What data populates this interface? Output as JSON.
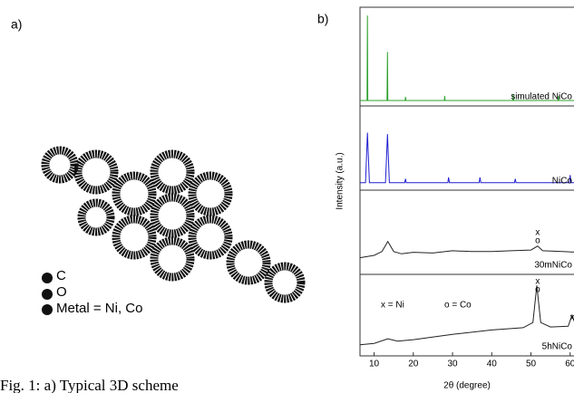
{
  "figure": {
    "label_a": "a)",
    "label_b": "b)",
    "legend": [
      "C",
      "O",
      "Metal = Ni, Co"
    ],
    "caption": "Fig. 1: a) Typical 3D scheme"
  },
  "chart_data": {
    "type": "line",
    "xlabel": "2θ (degree)",
    "ylabel": "Intensity (a.u.)",
    "xlim": [
      6.4,
      62.6
    ],
    "xticks": [
      10,
      20,
      30,
      40,
      50,
      60
    ],
    "ylim": [
      0,
      1
    ],
    "annotations": [
      "x",
      "o",
      "x = Ni",
      "o = Co",
      "x",
      "o",
      "x"
    ],
    "series": [
      {
        "name": "simulated NiCo",
        "color": "#2ca02c",
        "x": [
          6.4,
          8.2,
          8.3,
          8.4,
          13.3,
          13.4,
          13.5,
          17.9,
          18,
          18.1,
          27.9,
          28,
          28.1,
          45.4,
          45.5,
          45.6,
          56.9,
          57,
          57.1,
          62.6
        ],
        "values": [
          0.02,
          0.02,
          0.95,
          0.02,
          0.02,
          0.55,
          0.02,
          0.02,
          0.06,
          0.02,
          0.02,
          0.07,
          0.02,
          0.02,
          0.09,
          0.02,
          0.02,
          0.07,
          0.02,
          0.02
        ]
      },
      {
        "name": "NiCo",
        "color": "#1f1fd0",
        "x": [
          6.4,
          7.8,
          8.3,
          8.8,
          12.9,
          13.4,
          13.9,
          17.8,
          18,
          18.2,
          28.8,
          29,
          29.2,
          36.8,
          37,
          37.2,
          45.8,
          46,
          46.2,
          59.8,
          60,
          60.2,
          62.6
        ],
        "values": [
          0.05,
          0.05,
          0.7,
          0.05,
          0.05,
          0.68,
          0.05,
          0.05,
          0.1,
          0.05,
          0.05,
          0.12,
          0.05,
          0.05,
          0.12,
          0.05,
          0.05,
          0.1,
          0.05,
          0.05,
          0.15,
          0.05,
          0.05
        ]
      },
      {
        "name": "30mNiCo",
        "color": "#222222",
        "x": [
          6.4,
          10,
          12,
          13.5,
          15,
          17,
          20,
          25,
          30,
          35,
          40,
          45,
          50,
          51.7,
          53,
          58,
          62.6
        ],
        "values": [
          0.17,
          0.2,
          0.25,
          0.38,
          0.25,
          0.22,
          0.24,
          0.23,
          0.26,
          0.25,
          0.25,
          0.26,
          0.27,
          0.32,
          0.26,
          0.25,
          0.24
        ]
      },
      {
        "name": "5hNiCo",
        "color": "#222222",
        "x": [
          6.4,
          10,
          13.5,
          16,
          20,
          30,
          40,
          48,
          50.5,
          51.5,
          52.5,
          55,
          59.5,
          60.5,
          61.5,
          62.6
        ],
        "values": [
          0.1,
          0.12,
          0.18,
          0.15,
          0.17,
          0.24,
          0.3,
          0.33,
          0.4,
          0.9,
          0.4,
          0.34,
          0.35,
          0.5,
          0.35,
          0.34
        ]
      }
    ]
  }
}
